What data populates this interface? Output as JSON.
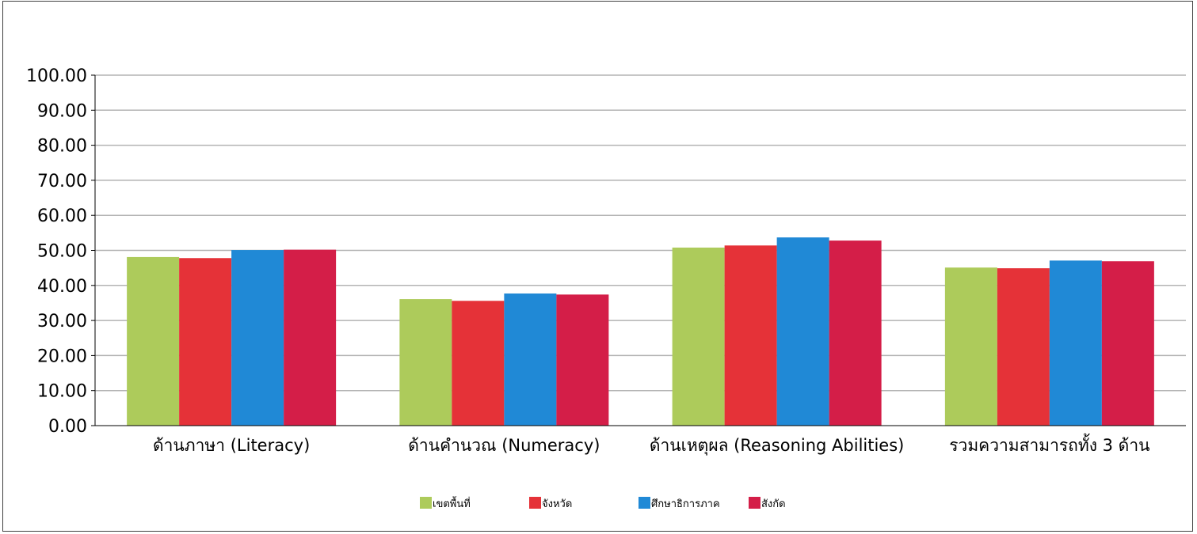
{
  "chart_data": {
    "type": "bar",
    "categories": [
      "ด้านภาษา (Literacy)",
      "ด้านคำนวณ (Numeracy)",
      "ด้านเหตุผล (Reasoning Abilities)",
      "รวมความสามารถทั้ง 3 ด้าน"
    ],
    "series": [
      {
        "name": "เขตพื้นที่",
        "color": "#adcb5b",
        "values": [
          48.1,
          36.1,
          50.8,
          45.1
        ]
      },
      {
        "name": "จังหวัด",
        "color": "#e53238",
        "values": [
          47.8,
          35.6,
          51.4,
          44.9
        ]
      },
      {
        "name": "ศึกษาธิการภาค",
        "color": "#2089d6",
        "values": [
          50.1,
          37.7,
          53.7,
          47.1
        ]
      },
      {
        "name": "สังกัด",
        "color": "#d41e48",
        "values": [
          50.2,
          37.4,
          52.8,
          46.9
        ]
      }
    ],
    "ylim": [
      0,
      100
    ],
    "yticks": [
      "0.00",
      "10.00",
      "20.00",
      "30.00",
      "40.00",
      "50.00",
      "60.00",
      "70.00",
      "80.00",
      "90.00",
      "100.00"
    ],
    "grid": true,
    "legend_position": "bottom"
  }
}
